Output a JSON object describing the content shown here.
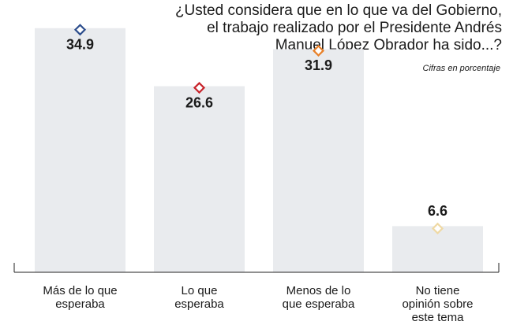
{
  "chart_data": {
    "type": "bar",
    "title": [
      "¿Usted considera que en lo que va del Gobierno,",
      "el trabajo realizado por el Presidente Andrés",
      "Manuel  López Obrador ha sido...?"
    ],
    "subtitle": "Cifras en porcentaje",
    "categories": [
      [
        "Más de lo que",
        "esperaba"
      ],
      [
        "Lo que",
        "esperaba"
      ],
      [
        "Menos de lo",
        "que esperaba"
      ],
      [
        "No tiene",
        "opinión sobre",
        "este tema"
      ]
    ],
    "values": [
      34.9,
      26.6,
      31.9,
      6.6
    ],
    "color": "#e9ebee",
    "marker_colors": [
      "#2b4c8c",
      "#c8242b",
      "#e8812a",
      "#efd9a4"
    ],
    "ylim": [
      0,
      36
    ]
  }
}
